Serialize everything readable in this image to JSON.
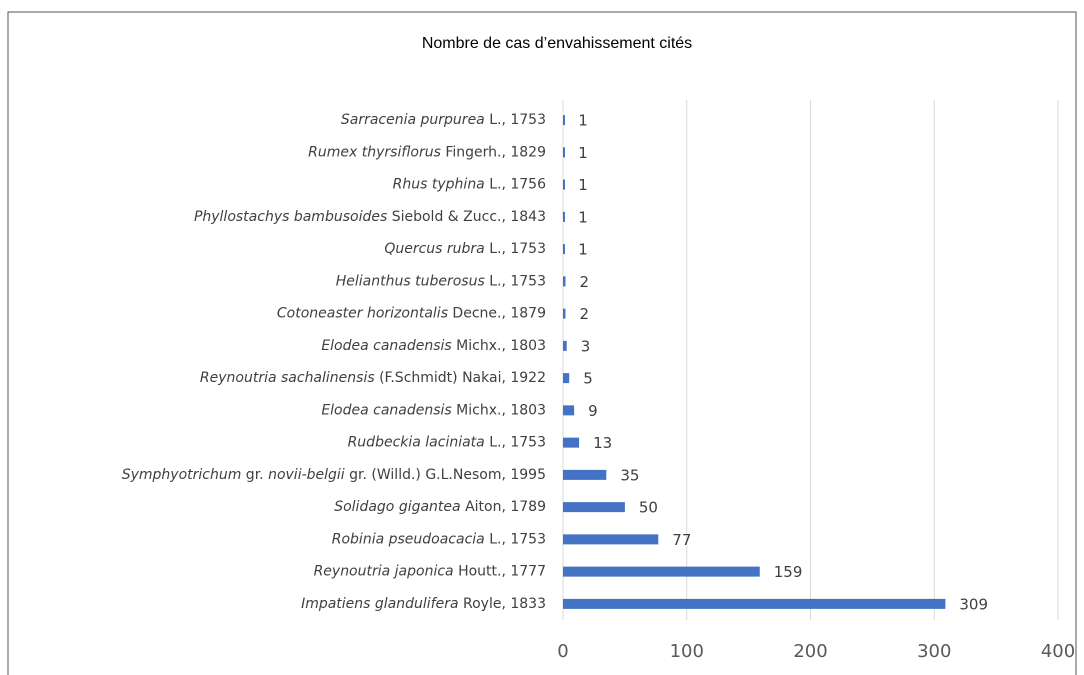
{
  "chart_data": {
    "type": "bar",
    "orientation": "horizontal",
    "title": "Nombre de cas d’envahissement cités",
    "categories": [
      [
        "Sarracenia purpurea",
        " L., 1753"
      ],
      [
        "Rumex thyrsiflorus",
        " Fingerh., 1829"
      ],
      [
        "Rhus typhina",
        " L., 1756"
      ],
      [
        "Phyllostachys bambusoides",
        " Siebold & Zucc., 1843"
      ],
      [
        "Quercus rubra",
        " L., 1753"
      ],
      [
        "Helianthus tuberosus",
        " L., 1753"
      ],
      [
        "Cotoneaster horizontalis",
        " Decne., 1879"
      ],
      [
        "Elodea canadensis",
        " Michx., 1803"
      ],
      [
        "Reynoutria sachalinensis",
        " (F.Schmidt) Nakai, 1922"
      ],
      [
        "Elodea canadensis",
        " Michx., 1803"
      ],
      [
        "Rudbeckia laciniata",
        " L., 1753"
      ],
      [
        "Symphyotrichum",
        " gr. ",
        "novii-belgii",
        " gr. (Willd.) G.L.Nesom, 1995"
      ],
      [
        "Solidago gigantea",
        " Aiton, 1789"
      ],
      [
        "Robinia pseudoacacia",
        " L., 1753"
      ],
      [
        "Reynoutria japonica",
        " Houtt., 1777"
      ],
      [
        "Impatiens glandulifera",
        " Royle, 1833"
      ]
    ],
    "values": [
      1,
      1,
      1,
      1,
      1,
      2,
      2,
      3,
      5,
      9,
      13,
      35,
      50,
      77,
      159,
      309
    ],
    "color": "#4472c4",
    "xlim": [
      0,
      400
    ],
    "xticks": [
      0,
      100,
      200,
      300,
      400
    ],
    "grid": true
  }
}
